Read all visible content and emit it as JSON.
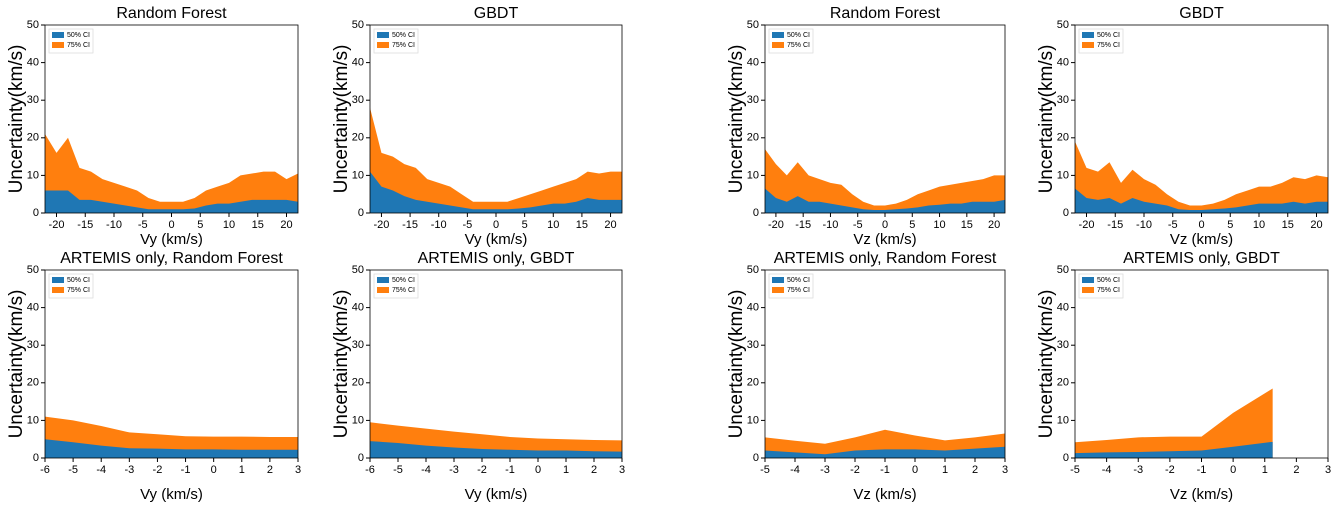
{
  "chart_data": [
    {
      "type": "area",
      "title": "Random Forest",
      "xlabel": "Vy (km/s)",
      "ylabel": "Uncertainty(km/s)",
      "x": [
        -22,
        -20,
        -18,
        -16,
        -14,
        -12,
        -10,
        -8,
        -6,
        -4,
        -2,
        0,
        2,
        4,
        6,
        8,
        10,
        12,
        14,
        16,
        18,
        20,
        22
      ],
      "series": [
        {
          "name": "50% CI",
          "color": "#1f77b4",
          "values": [
            6,
            6,
            6,
            3.5,
            3.5,
            3,
            2.5,
            2,
            1.5,
            1,
            1,
            1,
            1,
            1.2,
            2,
            2.5,
            2.5,
            3,
            3.5,
            3.5,
            3.5,
            3.5,
            3
          ]
        },
        {
          "name": "75% CI",
          "color": "#ff7f0e",
          "values": [
            21,
            16,
            20,
            12,
            11,
            9,
            8,
            7,
            6,
            4,
            3,
            3,
            3,
            4,
            6,
            7,
            8,
            10,
            10.5,
            11,
            11,
            9,
            10.5
          ]
        }
      ],
      "xlim": [
        -22,
        22
      ],
      "xticks": [
        -20,
        -15,
        -10,
        -5,
        0,
        5,
        10,
        15,
        20
      ],
      "ylim": [
        0,
        50
      ],
      "yticks": [
        0,
        10,
        20,
        30,
        40,
        50
      ]
    },
    {
      "type": "area",
      "title": "GBDT",
      "xlabel": "Vy (km/s)",
      "ylabel": "Uncertainty(km/s)",
      "x": [
        -22,
        -20,
        -18,
        -16,
        -14,
        -12,
        -10,
        -8,
        -6,
        -4,
        -2,
        0,
        2,
        4,
        6,
        8,
        10,
        12,
        14,
        16,
        18,
        20,
        22
      ],
      "series": [
        {
          "name": "50% CI",
          "color": "#1f77b4",
          "values": [
            11,
            7,
            6,
            4.5,
            3.5,
            3,
            2.5,
            2,
            1.5,
            1,
            1,
            1,
            1,
            1.2,
            1.5,
            2,
            2.5,
            2.5,
            3,
            4,
            3.5,
            3.5,
            3.5
          ]
        },
        {
          "name": "75% CI",
          "color": "#ff7f0e",
          "values": [
            28,
            16,
            15,
            13,
            12,
            9,
            8,
            7,
            5,
            3,
            3,
            3,
            3,
            4,
            5,
            6,
            7,
            8,
            9,
            11,
            10.5,
            11,
            11
          ]
        }
      ],
      "xlim": [
        -22,
        22
      ],
      "xticks": [
        -20,
        -15,
        -10,
        -5,
        0,
        5,
        10,
        15,
        20
      ],
      "ylim": [
        0,
        50
      ],
      "yticks": [
        0,
        10,
        20,
        30,
        40,
        50
      ]
    },
    {
      "type": "area",
      "title": "Random Forest",
      "xlabel": "Vz (km/s)",
      "ylabel": "Uncertainty(km/s)",
      "x": [
        -22,
        -20,
        -18,
        -16,
        -14,
        -12,
        -10,
        -8,
        -6,
        -4,
        -2,
        0,
        2,
        4,
        6,
        8,
        10,
        12,
        14,
        16,
        18,
        20,
        22
      ],
      "series": [
        {
          "name": "50% CI",
          "color": "#1f77b4",
          "values": [
            6.5,
            4,
            3,
            4.5,
            3,
            3,
            2.5,
            2,
            1.5,
            1,
            0.8,
            0.8,
            1,
            1.2,
            1.5,
            2,
            2.2,
            2.5,
            2.5,
            3,
            3,
            3,
            3.5
          ]
        },
        {
          "name": "75% CI",
          "color": "#ff7f0e",
          "values": [
            17,
            13,
            10,
            13.5,
            10,
            9,
            8,
            7.5,
            5,
            3,
            2,
            2,
            2.5,
            3.5,
            5,
            6,
            7,
            7.5,
            8,
            8.5,
            9,
            10,
            10
          ]
        }
      ],
      "xlim": [
        -22,
        22
      ],
      "xticks": [
        -20,
        -15,
        -10,
        -5,
        0,
        5,
        10,
        15,
        20
      ],
      "ylim": [
        0,
        50
      ],
      "yticks": [
        0,
        10,
        20,
        30,
        40,
        50
      ]
    },
    {
      "type": "area",
      "title": "GBDT",
      "xlabel": "Vz (km/s)",
      "ylabel": "Uncertainty(km/s)",
      "x": [
        -22,
        -20,
        -18,
        -16,
        -14,
        -12,
        -10,
        -8,
        -6,
        -4,
        -2,
        0,
        2,
        4,
        6,
        8,
        10,
        12,
        14,
        16,
        18,
        20,
        22
      ],
      "series": [
        {
          "name": "50% CI",
          "color": "#1f77b4",
          "values": [
            6.5,
            4,
            3.5,
            4,
            2.5,
            4,
            3,
            2.5,
            2,
            1,
            0.8,
            0.8,
            1,
            1.2,
            1.5,
            2,
            2.5,
            2.5,
            2.5,
            3,
            2.5,
            3,
            3
          ]
        },
        {
          "name": "75% CI",
          "color": "#ff7f0e",
          "values": [
            19,
            12,
            11,
            13.5,
            8,
            11.5,
            9,
            7.5,
            5,
            3,
            2,
            2,
            2.5,
            3.5,
            5,
            6,
            7,
            7,
            8,
            9.5,
            9,
            10,
            9.5
          ]
        }
      ],
      "xlim": [
        -22,
        22
      ],
      "xticks": [
        -20,
        -15,
        -10,
        -5,
        0,
        5,
        10,
        15,
        20
      ],
      "ylim": [
        0,
        50
      ],
      "yticks": [
        0,
        10,
        20,
        30,
        40,
        50
      ]
    },
    {
      "type": "area",
      "title": "ARTEMIS only, Random Forest",
      "xlabel": "Vy (km/s)",
      "ylabel": "Uncertainty(km/s)",
      "x": [
        -6,
        -5,
        -4,
        -3,
        -2,
        -1,
        0,
        1,
        2,
        3
      ],
      "series": [
        {
          "name": "50% CI",
          "color": "#1f77b4",
          "values": [
            5,
            4.2,
            3.3,
            2.6,
            2.5,
            2.3,
            2.3,
            2.2,
            2.2,
            2.2
          ]
        },
        {
          "name": "75% CI",
          "color": "#ff7f0e",
          "values": [
            11,
            10,
            8.5,
            6.8,
            6.3,
            5.8,
            5.7,
            5.7,
            5.6,
            5.6
          ]
        }
      ],
      "xlim": [
        -6,
        3
      ],
      "xticks": [
        -6,
        -5,
        -4,
        -3,
        -2,
        -1,
        0,
        1,
        2,
        3
      ],
      "ylim": [
        0,
        50
      ],
      "yticks": [
        0,
        10,
        20,
        30,
        40,
        50
      ]
    },
    {
      "type": "area",
      "title": "ARTEMIS only, GBDT",
      "xlabel": "Vy (km/s)",
      "ylabel": "Uncertainty(km/s)",
      "x": [
        -6,
        -5,
        -4,
        -3,
        -2,
        -1,
        0,
        1,
        2,
        3
      ],
      "series": [
        {
          "name": "50% CI",
          "color": "#1f77b4",
          "values": [
            4.5,
            4,
            3.3,
            2.8,
            2.4,
            2.2,
            2,
            2,
            1.8,
            1.7
          ]
        },
        {
          "name": "75% CI",
          "color": "#ff7f0e",
          "values": [
            9.5,
            8.6,
            7.8,
            7,
            6.3,
            5.6,
            5.2,
            5,
            4.8,
            4.7
          ]
        }
      ],
      "xlim": [
        -6,
        3
      ],
      "xticks": [
        -6,
        -5,
        -4,
        -3,
        -2,
        -1,
        0,
        1,
        2,
        3
      ],
      "ylim": [
        0,
        50
      ],
      "yticks": [
        0,
        10,
        20,
        30,
        40,
        50
      ]
    },
    {
      "type": "area",
      "title": "ARTEMIS only, Random Forest",
      "xlabel": "Vz (km/s)",
      "ylabel": "Uncertainty(km/s)",
      "x": [
        -5,
        -4,
        -3,
        -2,
        -1,
        0,
        1,
        2,
        3
      ],
      "series": [
        {
          "name": "50% CI",
          "color": "#1f77b4",
          "values": [
            2,
            1.5,
            1,
            2,
            2.3,
            2.3,
            2,
            2.5,
            3
          ]
        },
        {
          "name": "75% CI",
          "color": "#ff7f0e",
          "values": [
            5.5,
            4.6,
            3.8,
            5.5,
            7.5,
            6,
            4.7,
            5.5,
            6.5
          ]
        }
      ],
      "xlim": [
        -5,
        3
      ],
      "xticks": [
        -5,
        -4,
        -3,
        -2,
        -1,
        0,
        1,
        2,
        3
      ],
      "ylim": [
        0,
        50
      ],
      "yticks": [
        0,
        10,
        20,
        30,
        40,
        50
      ]
    },
    {
      "type": "area",
      "title": "ARTEMIS only, GBDT",
      "xlabel": "Vz (km/s)",
      "ylabel": "Uncertainty(km/s)",
      "x": [
        -5,
        -4,
        -3,
        -2,
        -1,
        0,
        1.25
      ],
      "series": [
        {
          "name": "50% CI",
          "color": "#1f77b4",
          "values": [
            1.3,
            1.5,
            1.6,
            1.8,
            2,
            3,
            4.3
          ]
        },
        {
          "name": "75% CI",
          "color": "#ff7f0e",
          "values": [
            4.2,
            4.8,
            5.5,
            5.7,
            5.7,
            12,
            18.5
          ]
        }
      ],
      "xlim": [
        -5,
        3
      ],
      "xticks": [
        -5,
        -4,
        -3,
        -2,
        -1,
        0,
        1,
        2,
        3
      ],
      "ylim": [
        0,
        50
      ],
      "yticks": [
        0,
        10,
        20,
        30,
        40,
        50
      ]
    }
  ]
}
